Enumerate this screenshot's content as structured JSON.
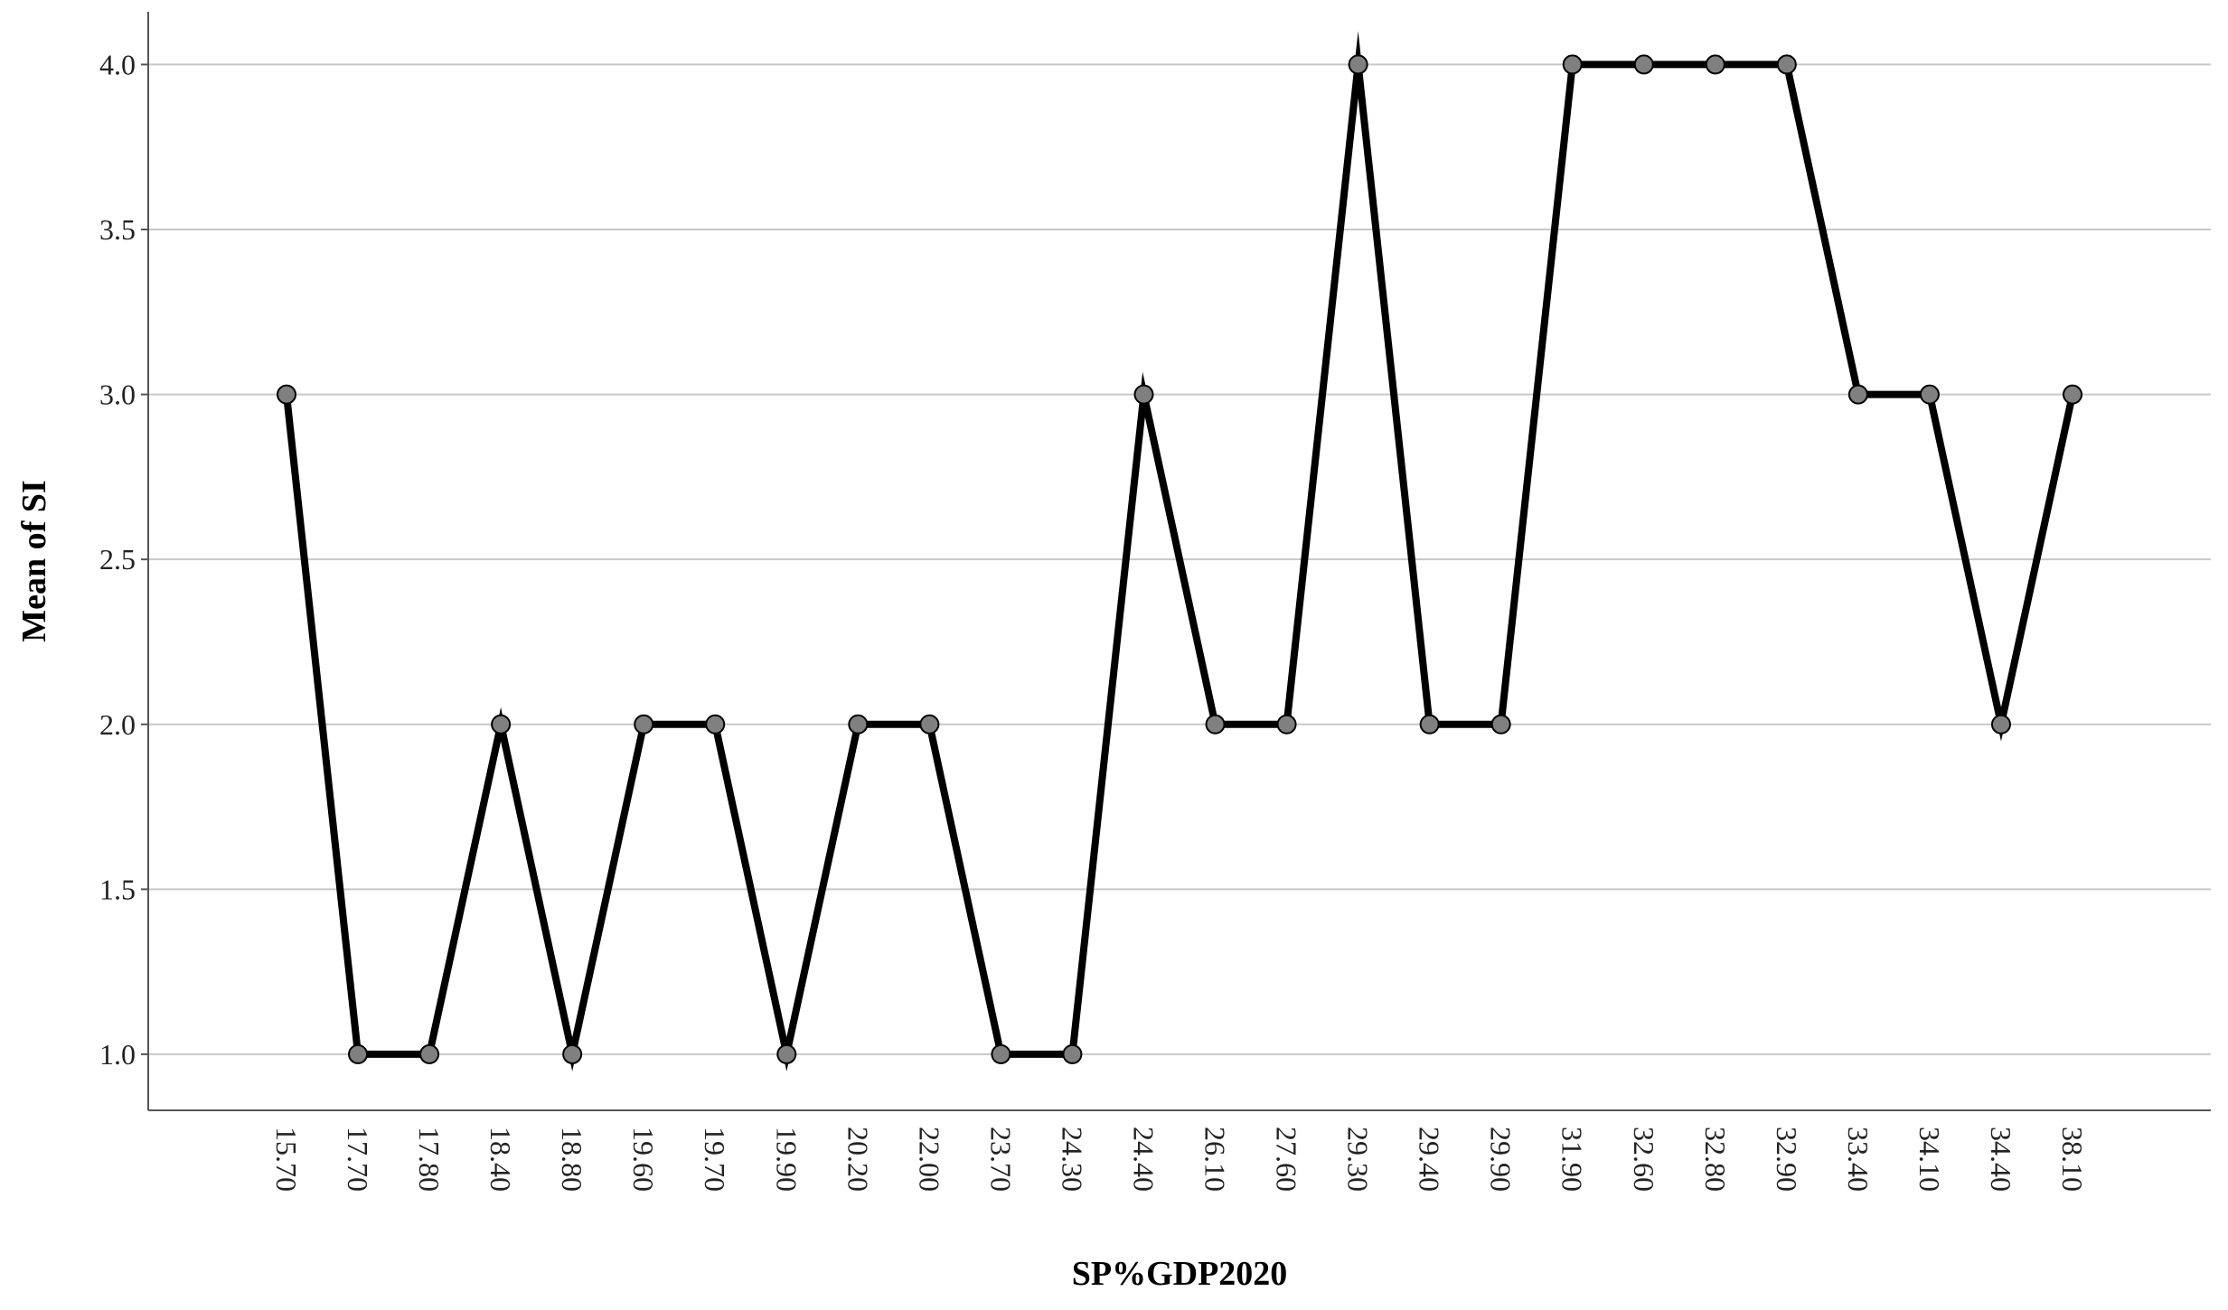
{
  "chart_data": {
    "type": "line",
    "x_label": "SP%GDP2020",
    "y_label": "Mean of SI",
    "categories": [
      "15.70",
      "17.70",
      "17.80",
      "18.40",
      "18.80",
      "19.60",
      "19.70",
      "19.90",
      "20.20",
      "22.00",
      "23.70",
      "24.30",
      "24.40",
      "26.10",
      "27.60",
      "29.30",
      "29.40",
      "29.90",
      "31.90",
      "32.60",
      "32.80",
      "32.90",
      "33.40",
      "34.10",
      "34.40",
      "38.10"
    ],
    "values": [
      3,
      1,
      1,
      2,
      1,
      2,
      2,
      1,
      2,
      2,
      1,
      1,
      3,
      2,
      2,
      4,
      2,
      2,
      4,
      4,
      4,
      4,
      3,
      3,
      2,
      3
    ],
    "color": "#000000",
    "marker_color": "#808080",
    "ylim": [
      0.83,
      4.16
    ],
    "yticks": [
      {
        "value": 1,
        "label": "1.0"
      },
      {
        "value": 1.5,
        "label": "1.5"
      },
      {
        "value": 2,
        "label": "2.0"
      },
      {
        "value": 2.5,
        "label": "2.5"
      },
      {
        "value": 3,
        "label": "3.0"
      },
      {
        "value": 3.5,
        "label": "3.5"
      },
      {
        "value": 4,
        "label": "4.0"
      }
    ],
    "grid": true
  }
}
